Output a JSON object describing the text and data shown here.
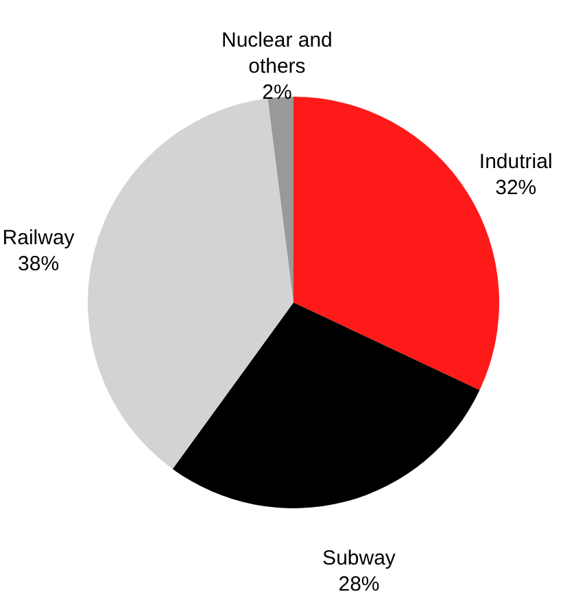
{
  "chart_data": {
    "type": "pie",
    "categories": [
      "Indutrial",
      "Subway",
      "Railway",
      "Nuclear and others"
    ],
    "values": [
      32,
      28,
      38,
      2
    ],
    "colors": [
      "#ff1a1a",
      "#000000",
      "#d3d3d3",
      "#999999"
    ],
    "value_labels": [
      "32%",
      "28%",
      "38%",
      "2%"
    ]
  }
}
